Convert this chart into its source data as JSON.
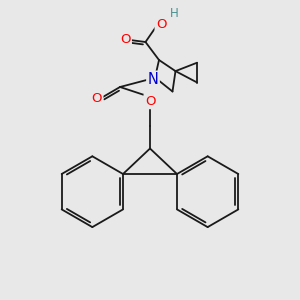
{
  "background_color": "#e8e8e8",
  "bond_color": "#1a1a1a",
  "bond_width": 1.3,
  "atom_colors": {
    "O": "#ff0000",
    "N": "#0000cc",
    "H": "#4a9090",
    "C": "#1a1a1a"
  },
  "font_size_atom": 8.5,
  "fig_width": 3.0,
  "fig_height": 3.0,
  "dpi": 100
}
